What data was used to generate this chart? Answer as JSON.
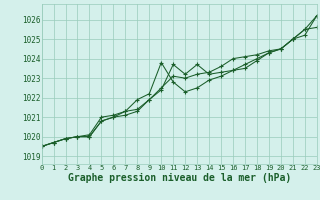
{
  "x": [
    0,
    1,
    2,
    3,
    4,
    5,
    6,
    7,
    8,
    9,
    10,
    11,
    12,
    13,
    14,
    15,
    16,
    17,
    18,
    19,
    20,
    21,
    22,
    23
  ],
  "series1": [
    1019.5,
    1019.7,
    1019.9,
    1020.0,
    1020.0,
    1020.8,
    1021.0,
    1021.1,
    1021.3,
    1021.9,
    1022.4,
    1023.7,
    1023.2,
    1023.7,
    1023.2,
    1023.3,
    1023.4,
    1023.5,
    1023.9,
    1024.3,
    1024.5,
    1025.0,
    1025.5,
    1026.2
  ],
  "series2": [
    1019.5,
    1019.7,
    1019.9,
    1020.0,
    1020.0,
    1020.8,
    1021.0,
    1021.3,
    1021.9,
    1022.2,
    1023.8,
    1022.8,
    1022.3,
    1022.5,
    1022.9,
    1023.1,
    1023.4,
    1023.7,
    1024.0,
    1024.3,
    1024.5,
    1025.0,
    1025.5,
    1025.6
  ],
  "series3": [
    1019.5,
    1019.7,
    1019.9,
    1020.0,
    1020.1,
    1021.0,
    1021.1,
    1021.3,
    1021.4,
    1021.9,
    1022.5,
    1023.1,
    1023.0,
    1023.2,
    1023.3,
    1023.6,
    1024.0,
    1024.1,
    1024.2,
    1024.4,
    1024.5,
    1025.0,
    1025.2,
    1026.2
  ],
  "bg_color": "#d4f0eb",
  "grid_color": "#99ccbb",
  "line_color": "#1a5e2a",
  "ylabel_ticks": [
    1019,
    1020,
    1021,
    1022,
    1023,
    1024,
    1025,
    1026
  ],
  "xlabel": "Graphe pression niveau de la mer (hPa)",
  "ylim": [
    1018.6,
    1026.8
  ],
  "xlim": [
    0,
    23
  ],
  "tick_fontsize": 5.5,
  "xlabel_fontsize": 7.0,
  "figsize": [
    3.2,
    2.0
  ],
  "dpi": 100
}
